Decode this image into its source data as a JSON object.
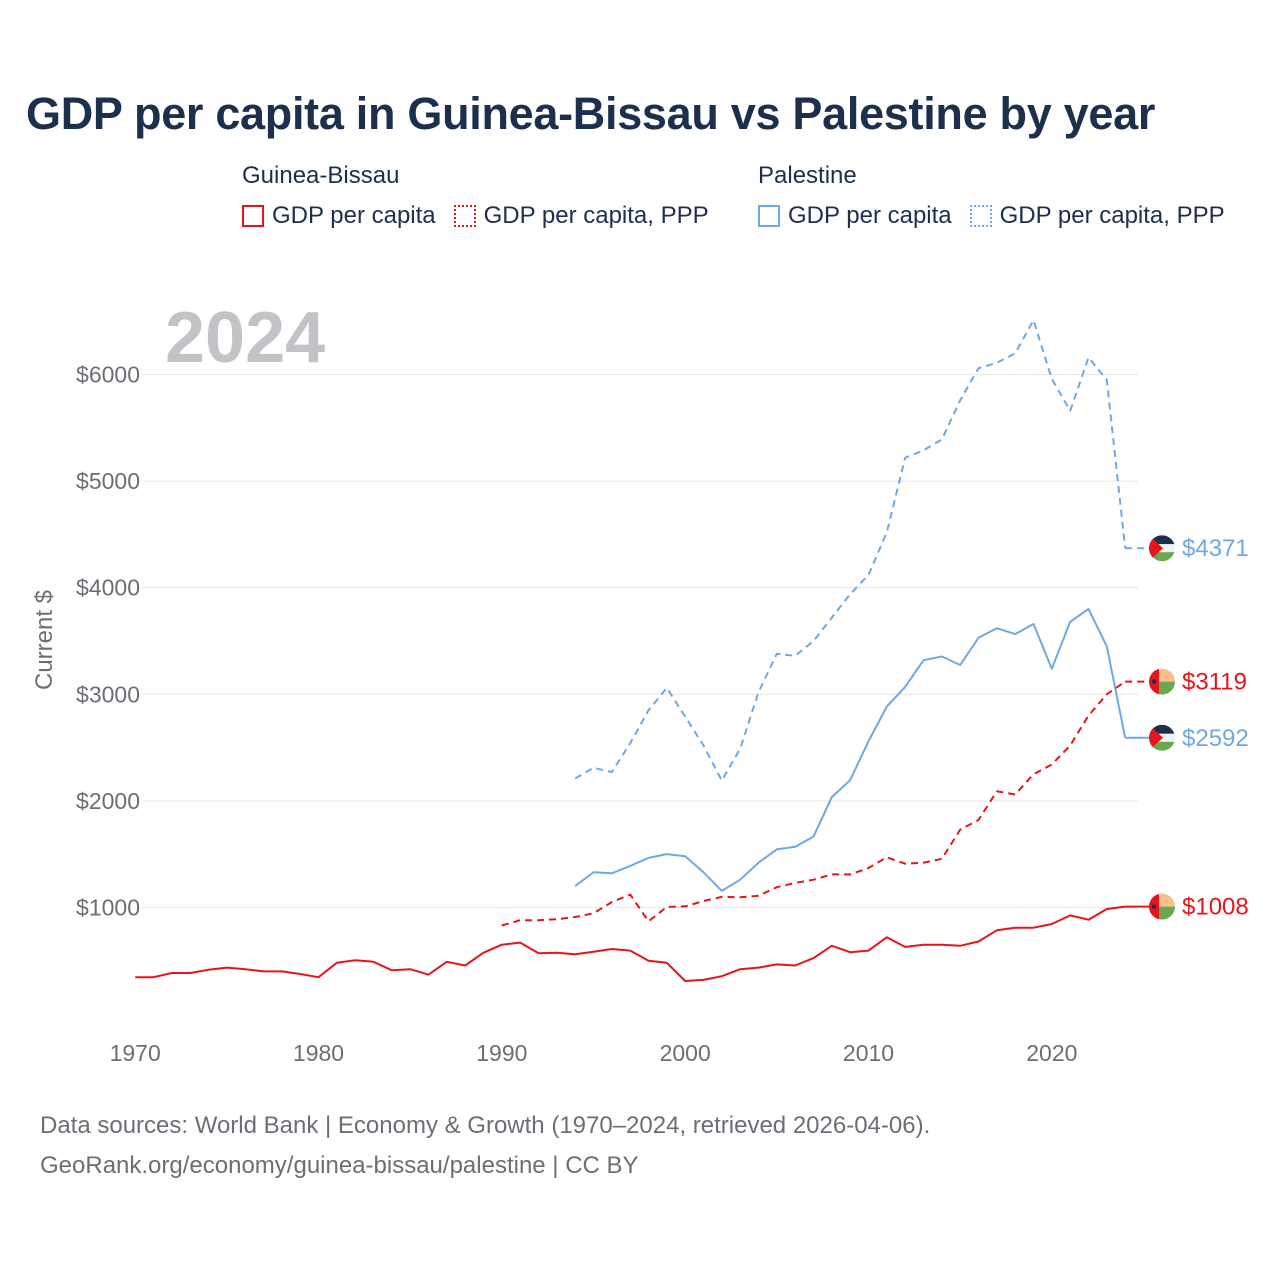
{
  "title": "GDP per capita in Guinea-Bissau vs Palestine by year",
  "legend": {
    "groups": [
      {
        "name": "Guinea-Bissau",
        "color": "#e8141b",
        "items": [
          {
            "label": "GDP per capita",
            "style": "solid"
          },
          {
            "label": "GDP per capita, PPP",
            "style": "dotted"
          }
        ]
      },
      {
        "name": "Palestine",
        "color": "#6ea9e1",
        "items": [
          {
            "label": "GDP per capita",
            "style": "solid"
          },
          {
            "label": "GDP per capita, PPP",
            "style": "dotted"
          }
        ]
      }
    ]
  },
  "footer": {
    "line1": "Data sources: World Bank | Economy & Growth (1970–2024, retrieved 2026-04-06).",
    "line2": "GeoRank.org/economy/guinea-bissau/palestine | CC BY"
  },
  "chart_data": {
    "type": "line",
    "title": "GDP per capita in Guinea-Bissau vs Palestine by year",
    "year_label": "2024",
    "xlabel": "",
    "ylabel": "Current $",
    "xlim": [
      1969.5,
      2024.7
    ],
    "ylim": [
      0,
      6700
    ],
    "x_ticks": [
      1970,
      1980,
      1990,
      2000,
      2010,
      2020
    ],
    "y_ticks": [
      1000,
      2000,
      3000,
      4000,
      5000,
      6000
    ],
    "y_tick_labels": [
      "$1000",
      "$2000",
      "$3000",
      "$4000",
      "$5000",
      "$6000"
    ],
    "grid": true,
    "series": [
      {
        "name": "Guinea-Bissau GDP per capita",
        "country": "Guinea-Bissau",
        "color": "#e8141b",
        "dash": "solid",
        "end_label": "$1008",
        "end_value": 1008,
        "x": [
          1970,
          1971,
          1972,
          1973,
          1974,
          1975,
          1976,
          1977,
          1978,
          1979,
          1980,
          1981,
          1982,
          1983,
          1984,
          1985,
          1986,
          1987,
          1988,
          1989,
          1990,
          1991,
          1992,
          1993,
          1994,
          1995,
          1996,
          1997,
          1998,
          1999,
          2000,
          2001,
          2002,
          2003,
          2004,
          2005,
          2006,
          2007,
          2008,
          2009,
          2010,
          2011,
          2012,
          2013,
          2014,
          2015,
          2016,
          2017,
          2018,
          2019,
          2020,
          2021,
          2022,
          2023,
          2024
        ],
        "values": [
          345,
          345,
          385,
          385,
          415,
          435,
          420,
          400,
          400,
          375,
          345,
          480,
          505,
          490,
          410,
          420,
          370,
          490,
          455,
          575,
          650,
          670,
          570,
          575,
          560,
          585,
          610,
          595,
          500,
          480,
          310,
          320,
          355,
          420,
          435,
          465,
          455,
          525,
          640,
          580,
          595,
          720,
          630,
          650,
          650,
          640,
          680,
          785,
          810,
          810,
          845,
          925,
          885,
          985,
          1008
        ]
      },
      {
        "name": "Guinea-Bissau GDP per capita, PPP",
        "country": "Guinea-Bissau",
        "color": "#e8141b",
        "dash": "dashed",
        "end_label": "$3119",
        "end_value": 3119,
        "x": [
          1990,
          1991,
          1992,
          1993,
          1994,
          1995,
          1996,
          1997,
          1998,
          1999,
          2000,
          2001,
          2002,
          2003,
          2004,
          2005,
          2006,
          2007,
          2008,
          2009,
          2010,
          2011,
          2012,
          2013,
          2014,
          2015,
          2016,
          2017,
          2018,
          2019,
          2020,
          2021,
          2022,
          2023,
          2024
        ],
        "values": [
          830,
          880,
          880,
          890,
          910,
          945,
          1050,
          1120,
          870,
          1005,
          1010,
          1060,
          1100,
          1095,
          1110,
          1190,
          1230,
          1260,
          1310,
          1310,
          1370,
          1470,
          1410,
          1420,
          1455,
          1730,
          1820,
          2090,
          2060,
          2250,
          2340,
          2520,
          2800,
          3000,
          3119
        ]
      },
      {
        "name": "Palestine GDP per capita",
        "country": "Palestine",
        "color": "#6ea9e1",
        "dash": "solid",
        "end_label": "$2592",
        "end_value": 2592,
        "x": [
          1994,
          1995,
          1996,
          1997,
          1998,
          1999,
          2000,
          2001,
          2002,
          2003,
          2004,
          2005,
          2006,
          2007,
          2008,
          2009,
          2010,
          2011,
          2012,
          2013,
          2014,
          2015,
          2016,
          2017,
          2018,
          2019,
          2020,
          2021,
          2022,
          2023,
          2024
        ],
        "values": [
          1200,
          1330,
          1320,
          1390,
          1465,
          1500,
          1480,
          1330,
          1155,
          1260,
          1420,
          1545,
          1570,
          1665,
          2035,
          2195,
          2560,
          2885,
          3070,
          3320,
          3355,
          3275,
          3530,
          3620,
          3565,
          3660,
          3240,
          3680,
          3800,
          3450,
          2592
        ]
      },
      {
        "name": "Palestine GDP per capita, PPP",
        "country": "Palestine",
        "color": "#6ea9e1",
        "dash": "dashed",
        "end_label": "$4371",
        "end_value": 4371,
        "x": [
          1994,
          1995,
          1996,
          1997,
          1998,
          1999,
          2000,
          2001,
          2002,
          2003,
          2004,
          2005,
          2006,
          2007,
          2008,
          2009,
          2010,
          2011,
          2012,
          2013,
          2014,
          2015,
          2016,
          2017,
          2018,
          2019,
          2020,
          2021,
          2022,
          2023,
          2024
        ],
        "values": [
          2210,
          2310,
          2270,
          2540,
          2850,
          3060,
          2790,
          2520,
          2190,
          2490,
          3020,
          3380,
          3360,
          3500,
          3720,
          3940,
          4120,
          4520,
          5220,
          5290,
          5390,
          5760,
          6060,
          6110,
          6200,
          6510,
          5960,
          5660,
          6160,
          5950,
          4371
        ]
      }
    ]
  }
}
